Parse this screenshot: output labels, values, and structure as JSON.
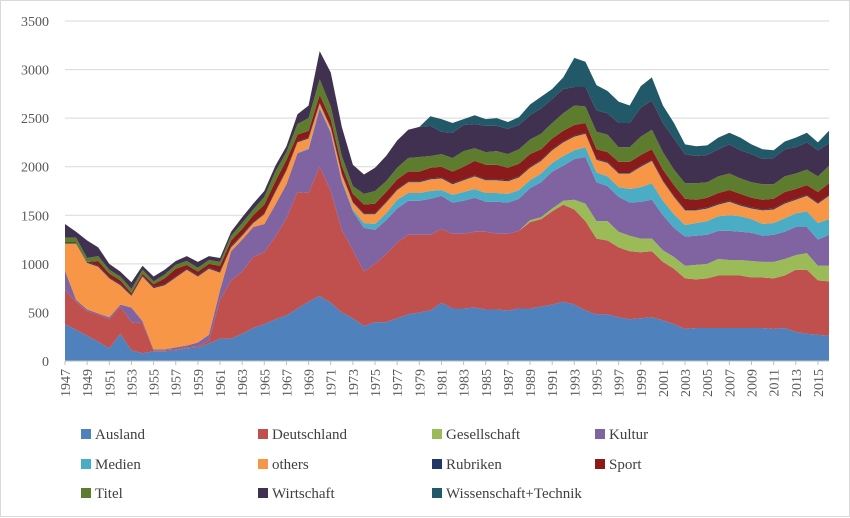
{
  "chart_data": {
    "type": "area",
    "stacked": true,
    "x": [
      1947,
      1948,
      1949,
      1950,
      1951,
      1952,
      1953,
      1954,
      1955,
      1956,
      1957,
      1958,
      1959,
      1960,
      1961,
      1962,
      1963,
      1964,
      1965,
      1966,
      1967,
      1968,
      1969,
      1970,
      1971,
      1972,
      1973,
      1974,
      1975,
      1976,
      1977,
      1978,
      1979,
      1980,
      1981,
      1982,
      1983,
      1984,
      1985,
      1986,
      1987,
      1988,
      1989,
      1990,
      1991,
      1992,
      1993,
      1994,
      1995,
      1996,
      1997,
      1998,
      1999,
      2000,
      2001,
      2002,
      2003,
      2004,
      2005,
      2006,
      2007,
      2008,
      2009,
      2010,
      2011,
      2012,
      2013,
      2014,
      2015,
      2016
    ],
    "x_tick_labels": [
      "1947",
      "1949",
      "1951",
      "1953",
      "1955",
      "1957",
      "1959",
      "1961",
      "1963",
      "1965",
      "1967",
      "1969",
      "1971",
      "1973",
      "1975",
      "1977",
      "1979",
      "1981",
      "1983",
      "1985",
      "1987",
      "1989",
      "1991",
      "1993",
      "1995",
      "1997",
      "1999",
      "2001",
      "2003",
      "2005",
      "2007",
      "2009",
      "2011",
      "2013",
      "2015"
    ],
    "y_ticks": [
      0,
      500,
      1000,
      1500,
      2000,
      2500,
      3000,
      3500
    ],
    "ylim": [
      0,
      3500
    ],
    "grid": "horizontal",
    "legend_position": "bottom",
    "series": [
      {
        "name": "Ausland",
        "color": "#4f81bd",
        "values": [
          380,
          320,
          260,
          200,
          130,
          280,
          110,
          80,
          100,
          100,
          110,
          130,
          140,
          180,
          230,
          230,
          280,
          340,
          380,
          430,
          470,
          540,
          610,
          670,
          600,
          500,
          440,
          360,
          400,
          400,
          440,
          480,
          500,
          520,
          600,
          540,
          540,
          550,
          530,
          530,
          520,
          540,
          540,
          560,
          580,
          610,
          580,
          520,
          480,
          480,
          450,
          430,
          440,
          450,
          420,
          380,
          330,
          340,
          340,
          340,
          340,
          340,
          340,
          340,
          330,
          340,
          300,
          280,
          270,
          260
        ]
      },
      {
        "name": "Deutschland",
        "color": "#c0504d",
        "values": [
          350,
          290,
          250,
          280,
          300,
          280,
          290,
          310,
          10,
          10,
          10,
          10,
          10,
          30,
          400,
          600,
          640,
          730,
          740,
          850,
          1000,
          1200,
          1120,
          1330,
          1150,
          850,
          700,
          560,
          600,
          700,
          780,
          820,
          800,
          780,
          760,
          770,
          770,
          780,
          800,
          780,
          790,
          800,
          890,
          900,
          960,
          1000,
          980,
          920,
          780,
          760,
          720,
          700,
          680,
          680,
          600,
          570,
          520,
          500,
          510,
          540,
          540,
          540,
          520,
          520,
          520,
          540,
          640,
          660,
          560,
          560
        ]
      },
      {
        "name": "Gesellschaft",
        "color": "#9bbb59",
        "values": [
          0,
          0,
          0,
          0,
          0,
          0,
          0,
          0,
          0,
          0,
          0,
          0,
          0,
          0,
          0,
          0,
          0,
          0,
          0,
          0,
          0,
          0,
          0,
          0,
          0,
          0,
          0,
          0,
          0,
          0,
          0,
          0,
          0,
          0,
          0,
          0,
          0,
          0,
          0,
          0,
          0,
          0,
          20,
          20,
          30,
          40,
          100,
          180,
          180,
          200,
          160,
          160,
          140,
          130,
          120,
          120,
          130,
          150,
          150,
          170,
          160,
          160,
          170,
          160,
          170,
          170,
          150,
          170,
          150,
          160
        ]
      },
      {
        "name": "Kultur",
        "color": "#8064a2",
        "values": [
          200,
          20,
          20,
          10,
          20,
          20,
          150,
          20,
          10,
          10,
          20,
          20,
          40,
          60,
          100,
          300,
          330,
          310,
          290,
          330,
          350,
          400,
          450,
          600,
          600,
          500,
          400,
          450,
          350,
          350,
          350,
          350,
          350,
          370,
          340,
          320,
          340,
          350,
          310,
          330,
          320,
          330,
          330,
          360,
          380,
          360,
          420,
          480,
          400,
          360,
          360,
          340,
          380,
          400,
          360,
          300,
          300,
          300,
          300,
          290,
          300,
          290,
          290,
          270,
          280,
          280,
          290,
          270,
          270,
          320
        ]
      },
      {
        "name": "Medien",
        "color": "#4bacc6",
        "values": [
          0,
          0,
          0,
          0,
          0,
          0,
          0,
          0,
          0,
          0,
          0,
          0,
          0,
          0,
          0,
          0,
          0,
          0,
          0,
          0,
          0,
          0,
          10,
          10,
          10,
          10,
          20,
          50,
          60,
          70,
          90,
          80,
          80,
          80,
          60,
          80,
          90,
          90,
          90,
          90,
          90,
          90,
          80,
          90,
          90,
          100,
          90,
          100,
          100,
          100,
          100,
          140,
          150,
          170,
          150,
          140,
          120,
          130,
          140,
          150,
          160,
          160,
          140,
          120,
          120,
          140,
          140,
          160,
          170,
          160
        ]
      },
      {
        "name": "others",
        "color": "#f79646",
        "values": [
          280,
          580,
          480,
          480,
          400,
          200,
          120,
          460,
          630,
          660,
          720,
          780,
          680,
          680,
          180,
          40,
          40,
          40,
          100,
          130,
          140,
          110,
          100,
          40,
          40,
          60,
          70,
          90,
          100,
          110,
          100,
          110,
          110,
          120,
          120,
          110,
          120,
          130,
          130,
          130,
          130,
          130,
          130,
          130,
          130,
          140,
          140,
          140,
          130,
          140,
          140,
          160,
          210,
          230,
          200,
          180,
          150,
          130,
          130,
          120,
          140,
          110,
          110,
          140,
          140,
          150,
          140,
          160,
          200,
          240
        ]
      },
      {
        "name": "Rubriken",
        "color": "#1f3864",
        "values": [
          10,
          10,
          10,
          10,
          10,
          10,
          10,
          10,
          10,
          10,
          10,
          10,
          10,
          10,
          10,
          10,
          10,
          10,
          10,
          10,
          10,
          10,
          10,
          10,
          10,
          10,
          10,
          10,
          10,
          10,
          10,
          10,
          10,
          10,
          10,
          10,
          10,
          10,
          10,
          10,
          10,
          10,
          10,
          10,
          10,
          10,
          10,
          10,
          10,
          10,
          10,
          10,
          10,
          10,
          10,
          10,
          10,
          10,
          10,
          10,
          10,
          10,
          10,
          10,
          10,
          10,
          10,
          10,
          10,
          10
        ]
      },
      {
        "name": "Sport",
        "color": "#8b1a1a",
        "values": [
          0,
          0,
          0,
          50,
          40,
          40,
          20,
          20,
          30,
          60,
          80,
          40,
          40,
          40,
          60,
          60,
          60,
          70,
          90,
          100,
          100,
          70,
          70,
          80,
          80,
          80,
          80,
          90,
          100,
          100,
          100,
          100,
          100,
          110,
          110,
          120,
          130,
          150,
          150,
          150,
          130,
          130,
          130,
          110,
          110,
          110,
          110,
          100,
          100,
          100,
          110,
          110,
          110,
          110,
          110,
          110,
          110,
          100,
          100,
          110,
          110,
          110,
          100,
          100,
          100,
          110,
          100,
          100,
          110,
          120
        ]
      },
      {
        "name": "Titel",
        "color": "#5e7c2e",
        "values": [
          50,
          50,
          40,
          50,
          40,
          40,
          40,
          40,
          30,
          40,
          40,
          40,
          40,
          40,
          40,
          50,
          60,
          60,
          80,
          100,
          80,
          110,
          130,
          160,
          130,
          100,
          80,
          110,
          130,
          110,
          120,
          140,
          150,
          120,
          130,
          140,
          160,
          130,
          130,
          140,
          140,
          150,
          150,
          160,
          160,
          180,
          200,
          170,
          180,
          180,
          150,
          150,
          190,
          200,
          180,
          160,
          160,
          170,
          160,
          170,
          170,
          160,
          160,
          160,
          150,
          160,
          160,
          160,
          160,
          180
        ]
      },
      {
        "name": "Wirtschaft",
        "color": "#403151",
        "values": [
          140,
          60,
          180,
          90,
          60,
          50,
          70,
          40,
          50,
          50,
          40,
          50,
          60,
          40,
          40,
          40,
          60,
          60,
          60,
          60,
          60,
          100,
          130,
          290,
          350,
          300,
          220,
          200,
          240,
          260,
          280,
          290,
          310,
          310,
          230,
          260,
          270,
          250,
          270,
          260,
          260,
          250,
          250,
          260,
          250,
          250,
          190,
          200,
          220,
          220,
          250,
          250,
          300,
          300,
          300,
          320,
          300,
          280,
          280,
          280,
          300,
          290,
          290,
          260,
          270,
          280,
          270,
          280,
          270,
          230
        ]
      },
      {
        "name": "Wissenschaft+Technik",
        "color": "#215968",
        "values": [
          0,
          0,
          0,
          0,
          0,
          0,
          0,
          0,
          0,
          0,
          0,
          0,
          0,
          0,
          0,
          0,
          0,
          0,
          0,
          0,
          0,
          0,
          0,
          0,
          0,
          0,
          0,
          0,
          0,
          0,
          0,
          0,
          0,
          100,
          130,
          100,
          60,
          90,
          70,
          80,
          70,
          80,
          110,
          120,
          100,
          120,
          300,
          260,
          260,
          230,
          220,
          180,
          220,
          240,
          180,
          160,
          100,
          100,
          100,
          120,
          120,
          130,
          100,
          100,
          80,
          80,
          100,
          100,
          80,
          130
        ]
      }
    ]
  }
}
